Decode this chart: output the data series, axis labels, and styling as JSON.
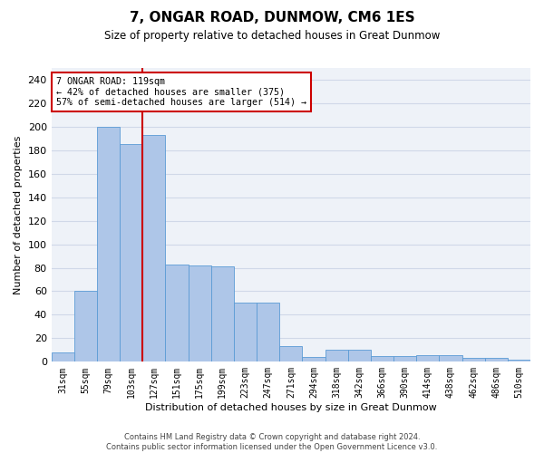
{
  "title": "7, ONGAR ROAD, DUNMOW, CM6 1ES",
  "subtitle": "Size of property relative to detached houses in Great Dunmow",
  "xlabel": "Distribution of detached houses by size in Great Dunmow",
  "ylabel": "Number of detached properties",
  "footer_line1": "Contains HM Land Registry data © Crown copyright and database right 2024.",
  "footer_line2": "Contains public sector information licensed under the Open Government Licence v3.0.",
  "categories": [
    "31sqm",
    "55sqm",
    "79sqm",
    "103sqm",
    "127sqm",
    "151sqm",
    "175sqm",
    "199sqm",
    "223sqm",
    "247sqm",
    "271sqm",
    "294sqm",
    "318sqm",
    "342sqm",
    "366sqm",
    "390sqm",
    "414sqm",
    "438sqm",
    "462sqm",
    "486sqm",
    "510sqm"
  ],
  "values": [
    8,
    60,
    200,
    185,
    193,
    83,
    82,
    81,
    50,
    50,
    13,
    4,
    10,
    10,
    5,
    5,
    6,
    6,
    3,
    3,
    2
  ],
  "bar_color": "#aec6e8",
  "bar_edge_color": "#5b9bd5",
  "grid_color": "#d0d8e8",
  "background_color": "#eef2f8",
  "red_line_color": "#cc0000",
  "annotation_line1": "7 ONGAR ROAD: 119sqm",
  "annotation_line2": "← 42% of detached houses are smaller (375)",
  "annotation_line3": "57% of semi-detached houses are larger (514) →",
  "annotation_box_color": "#ffffff",
  "annotation_box_edge_color": "#cc0000",
  "ylim": [
    0,
    250
  ],
  "yticks": [
    0,
    20,
    40,
    60,
    80,
    100,
    120,
    140,
    160,
    180,
    200,
    220,
    240
  ],
  "red_line_index": 3.5
}
